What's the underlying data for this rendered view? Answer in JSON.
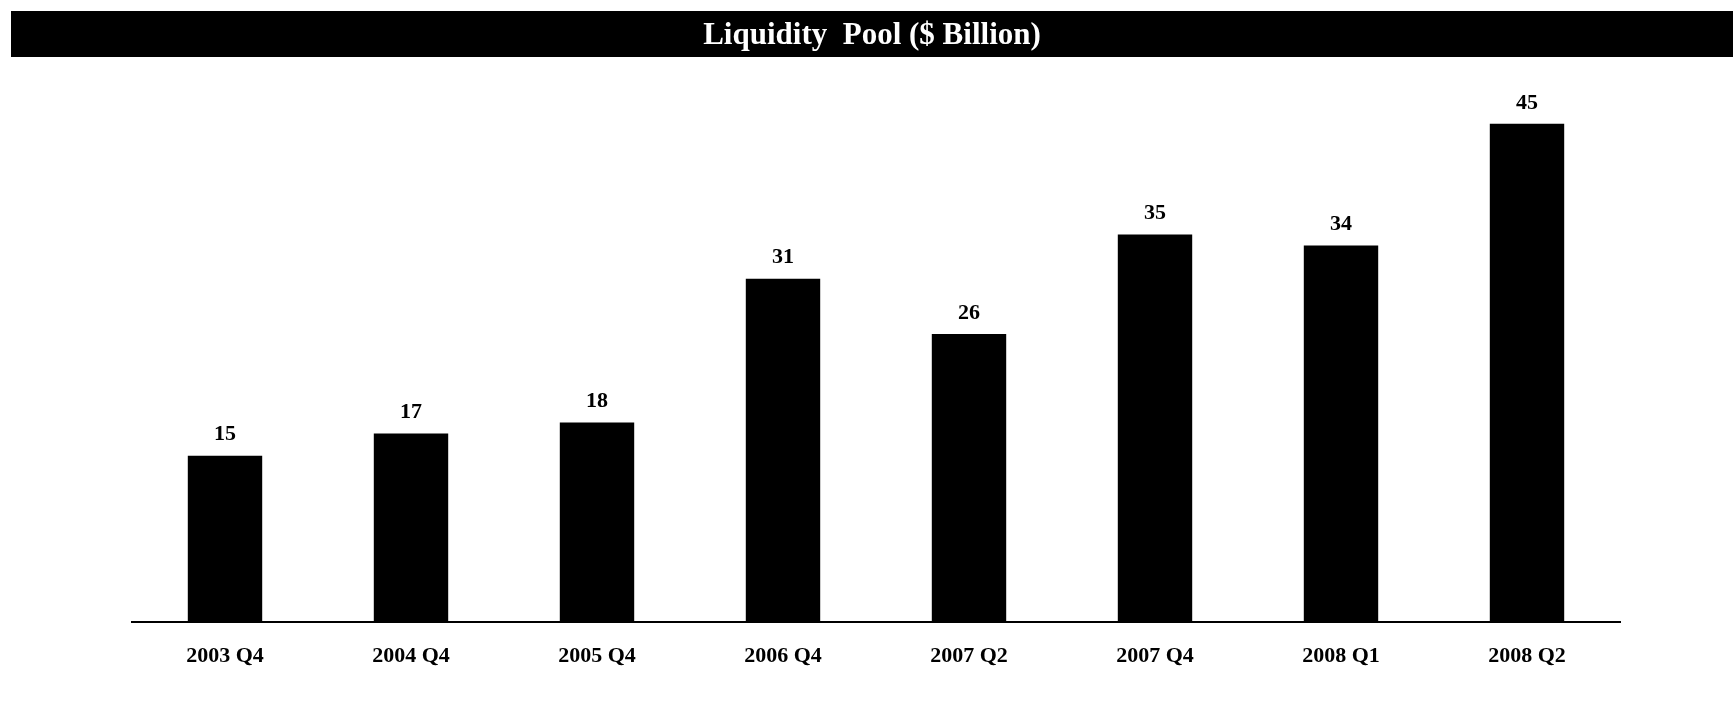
{
  "chart_data": {
    "type": "bar",
    "title": "Liquidity  Pool ($ Billion)",
    "categories": [
      "2003 Q4",
      "2004 Q4",
      "2005 Q4",
      "2006 Q4",
      "2007 Q2",
      "2007 Q4",
      "2008 Q1",
      "2008 Q2"
    ],
    "values": [
      15,
      17,
      18,
      31,
      26,
      35,
      34,
      45
    ],
    "color": "#000000",
    "relative": false,
    "data_labels": true
  }
}
